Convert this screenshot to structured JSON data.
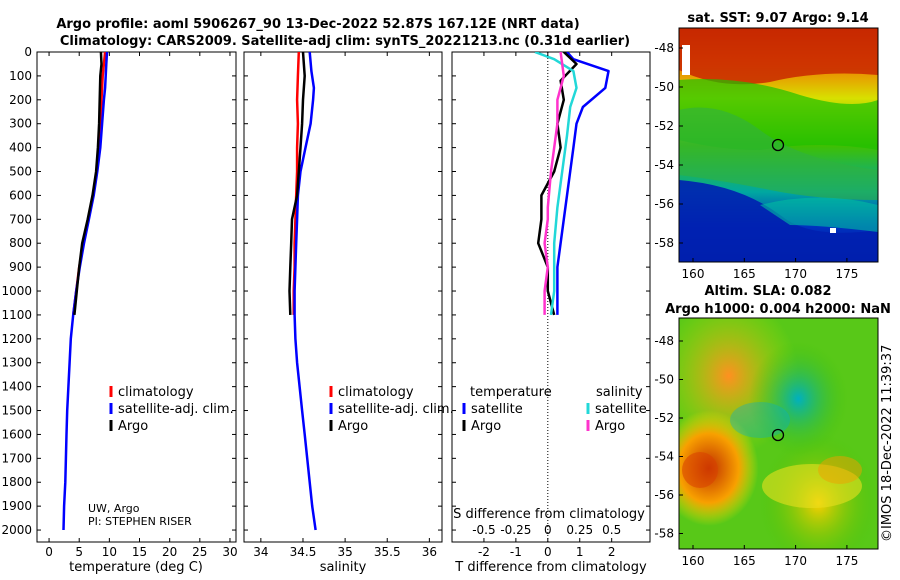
{
  "header": {
    "title_line1": "Argo profile: aoml 5906267_90 13-Dec-2022 52.87S 167.12E (NRT data)",
    "title_line2": "Climatology: CARS2009. Satellite-adj clim: synTS_20221213.nc (0.31d earlier)"
  },
  "colors": {
    "climatology": "#ff0000",
    "satellite": "#0000ff",
    "argo": "#000000",
    "sal_satellite": "#22d8d8",
    "sal_argo": "#ff33cc"
  },
  "depth_axis": {
    "ticks": [
      0,
      100,
      200,
      300,
      400,
      500,
      600,
      700,
      800,
      900,
      1000,
      1100,
      1200,
      1300,
      1400,
      1500,
      1600,
      1700,
      1800,
      1900,
      2000
    ],
    "range": [
      0,
      2050
    ]
  },
  "credits": {
    "line1": "UW, Argo",
    "line2": "PI: STEPHEN RISER"
  },
  "sat_panel": {
    "title": "sat. SST: 9.07 Argo: 9.14",
    "lat_ticks": [
      "-48",
      "-50",
      "-52",
      "-54",
      "-56",
      "-58"
    ],
    "lon_ticks": [
      "160",
      "165",
      "170",
      "175"
    ]
  },
  "sla_panel": {
    "title1": "Altim. SLA: 0.082",
    "title2": "Argo h1000: 0.004 h2000: NaN",
    "lat_ticks": [
      "-48",
      "-50",
      "-52",
      "-54",
      "-56",
      "-58"
    ],
    "lon_ticks": [
      "160",
      "165",
      "170",
      "175"
    ]
  },
  "watermark": "©IMOS 18-Dec-2022 11:39:37",
  "chart_data": [
    {
      "type": "line",
      "title": "temperature",
      "xlabel": "temperature (deg C)",
      "ylabel": "depth",
      "xlim": [
        -2,
        31
      ],
      "ylim": [
        2050,
        0
      ],
      "xticks": [
        0,
        5,
        10,
        15,
        20,
        25,
        30
      ],
      "legend": [
        "climatology",
        "satellite-adj. clim.",
        "Argo"
      ],
      "series": [
        {
          "name": "climatology",
          "color": "#ff0000",
          "points": [
            [
              9.3,
              0
            ],
            [
              9.1,
              50
            ],
            [
              8.9,
              100
            ],
            [
              8.8,
              150
            ],
            [
              8.7,
              200
            ],
            [
              8.5,
              300
            ],
            [
              8.2,
              400
            ],
            [
              7.9,
              500
            ],
            [
              7.3,
              600
            ],
            [
              6.5,
              700
            ],
            [
              5.7,
              800
            ],
            [
              5.0,
              900
            ],
            [
              4.5,
              1000
            ],
            [
              4.0,
              1100
            ]
          ]
        },
        {
          "name": "satellite-adj. clim.",
          "color": "#0000ff",
          "points": [
            [
              9.6,
              0
            ],
            [
              9.5,
              50
            ],
            [
              9.4,
              100
            ],
            [
              9.3,
              150
            ],
            [
              9.1,
              200
            ],
            [
              8.8,
              300
            ],
            [
              8.5,
              400
            ],
            [
              8.0,
              500
            ],
            [
              7.4,
              600
            ],
            [
              6.6,
              700
            ],
            [
              5.8,
              800
            ],
            [
              5.1,
              900
            ],
            [
              4.5,
              1000
            ],
            [
              4.0,
              1100
            ],
            [
              3.6,
              1200
            ],
            [
              3.4,
              1300
            ],
            [
              3.2,
              1400
            ],
            [
              3.0,
              1500
            ],
            [
              2.9,
              1600
            ],
            [
              2.8,
              1700
            ],
            [
              2.7,
              1800
            ],
            [
              2.5,
              1900
            ],
            [
              2.4,
              2000
            ]
          ]
        },
        {
          "name": "Argo",
          "color": "#000000",
          "points": [
            [
              8.6,
              0
            ],
            [
              8.7,
              50
            ],
            [
              8.5,
              100
            ],
            [
              8.4,
              200
            ],
            [
              8.3,
              300
            ],
            [
              8.1,
              400
            ],
            [
              7.8,
              500
            ],
            [
              7.2,
              600
            ],
            [
              6.4,
              700
            ],
            [
              5.5,
              800
            ],
            [
              5.0,
              900
            ],
            [
              4.6,
              1000
            ],
            [
              4.2,
              1100
            ]
          ]
        }
      ]
    },
    {
      "type": "line",
      "title": "salinity",
      "xlabel": "salinity",
      "ylabel": "depth",
      "xlim": [
        33.8,
        36.15
      ],
      "ylim": [
        2050,
        0
      ],
      "xticks": [
        34,
        34.5,
        35,
        35.5,
        36
      ],
      "legend": [
        "climatology",
        "satellite-adj. clim.",
        "Argo"
      ],
      "series": [
        {
          "name": "climatology",
          "color": "#ff0000",
          "points": [
            [
              34.45,
              0
            ],
            [
              34.44,
              100
            ],
            [
              34.43,
              200
            ],
            [
              34.44,
              300
            ],
            [
              34.43,
              400
            ],
            [
              34.43,
              500
            ],
            [
              34.42,
              600
            ],
            [
              34.41,
              700
            ],
            [
              34.4,
              800
            ],
            [
              34.4,
              900
            ],
            [
              34.39,
              1000
            ],
            [
              34.39,
              1100
            ]
          ]
        },
        {
          "name": "satellite-adj. clim.",
          "color": "#0000ff",
          "points": [
            [
              34.58,
              0
            ],
            [
              34.6,
              80
            ],
            [
              34.63,
              150
            ],
            [
              34.62,
              200
            ],
            [
              34.59,
              300
            ],
            [
              34.53,
              400
            ],
            [
              34.47,
              500
            ],
            [
              34.44,
              600
            ],
            [
              34.43,
              700
            ],
            [
              34.42,
              800
            ],
            [
              34.41,
              900
            ],
            [
              34.4,
              1000
            ],
            [
              34.4,
              1100
            ],
            [
              34.41,
              1200
            ],
            [
              34.43,
              1300
            ],
            [
              34.46,
              1400
            ],
            [
              34.49,
              1500
            ],
            [
              34.52,
              1600
            ],
            [
              34.55,
              1700
            ],
            [
              34.58,
              1800
            ],
            [
              34.61,
              1900
            ],
            [
              34.65,
              2000
            ]
          ]
        },
        {
          "name": "Argo",
          "color": "#000000",
          "points": [
            [
              34.5,
              0
            ],
            [
              34.52,
              100
            ],
            [
              34.5,
              200
            ],
            [
              34.49,
              300
            ],
            [
              34.47,
              400
            ],
            [
              34.45,
              500
            ],
            [
              34.43,
              600
            ],
            [
              34.37,
              700
            ],
            [
              34.36,
              800
            ],
            [
              34.35,
              900
            ],
            [
              34.34,
              1000
            ],
            [
              34.35,
              1100
            ]
          ]
        }
      ]
    },
    {
      "type": "line",
      "title": "difference from climatology",
      "xlabel": "T difference from climatology",
      "xlabel_top": "S difference from climatology",
      "xlim": [
        -3,
        3.2
      ],
      "ylim": [
        2050,
        0
      ],
      "xticks": [
        -2,
        -1,
        0,
        1,
        2
      ],
      "s_xticks": [
        "-0.5",
        "-0.25",
        "0",
        "0.25",
        "0.5"
      ],
      "legend_left_title": "temperature",
      "legend_right_title": "salinity",
      "legend_left": [
        "satellite",
        "Argo"
      ],
      "legend_right": [
        "satellite",
        "Argo"
      ],
      "series": [
        {
          "name": "temperature satellite",
          "color": "#0000ff",
          "points": [
            [
              0.6,
              0
            ],
            [
              0.8,
              30
            ],
            [
              1.9,
              80
            ],
            [
              1.8,
              150
            ],
            [
              1.1,
              230
            ],
            [
              0.9,
              300
            ],
            [
              0.8,
              400
            ],
            [
              0.7,
              500
            ],
            [
              0.6,
              600
            ],
            [
              0.5,
              700
            ],
            [
              0.4,
              800
            ],
            [
              0.3,
              900
            ],
            [
              0.3,
              1000
            ],
            [
              0.3,
              1100
            ]
          ]
        },
        {
          "name": "temperature Argo",
          "color": "#000000",
          "points": [
            [
              0.5,
              0
            ],
            [
              0.9,
              50
            ],
            [
              0.4,
              120
            ],
            [
              0.5,
              200
            ],
            [
              0.3,
              300
            ],
            [
              0.4,
              400
            ],
            [
              0.2,
              500
            ],
            [
              -0.2,
              600
            ],
            [
              -0.2,
              700
            ],
            [
              -0.3,
              800
            ],
            [
              0,
              900
            ],
            [
              0,
              1000
            ],
            [
              0.2,
              1100
            ]
          ]
        },
        {
          "name": "salinity satellite",
          "color": "#22d8d8",
          "points": [
            [
              -0.4,
              0
            ],
            [
              0.2,
              30
            ],
            [
              0.8,
              80
            ],
            [
              0.9,
              150
            ],
            [
              0.7,
              230
            ],
            [
              0.6,
              350
            ],
            [
              0.5,
              450
            ],
            [
              0.4,
              550
            ],
            [
              0.3,
              650
            ],
            [
              0.2,
              800
            ],
            [
              0.2,
              900
            ],
            [
              0.2,
              1000
            ],
            [
              0.1,
              1100
            ]
          ]
        },
        {
          "name": "salinity Argo",
          "color": "#ff33cc",
          "points": [
            [
              0.4,
              0
            ],
            [
              0.5,
              100
            ],
            [
              0.3,
              200
            ],
            [
              0.3,
              300
            ],
            [
              0.2,
              400
            ],
            [
              0.1,
              500
            ],
            [
              0,
              650
            ],
            [
              0,
              700
            ],
            [
              -0.1,
              800
            ],
            [
              0,
              900
            ],
            [
              -0.1,
              1000
            ],
            [
              -0.1,
              1100
            ]
          ]
        }
      ]
    }
  ]
}
